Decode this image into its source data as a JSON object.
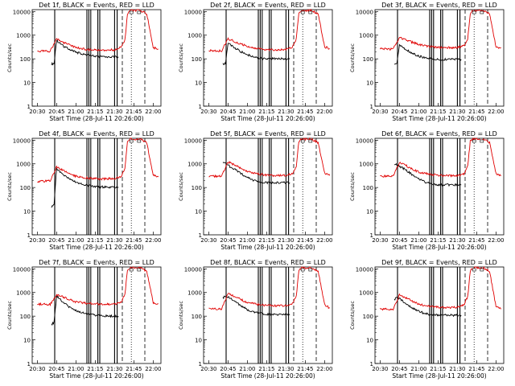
{
  "chart_data": [
    {
      "type": "line",
      "title": "Det 1f, BLACK = Events, RED = LLD",
      "xlabel": "Start Time (28-Jul-11 20:26:00)",
      "ylabel": "Counts/sec",
      "x_ticks": [
        "20:30",
        "20:45",
        "21:00",
        "21:15",
        "21:30",
        "21:45",
        "22:00"
      ],
      "y_ticks": [
        "1",
        "10",
        "100",
        "1000",
        "10000"
      ],
      "ylim": [
        1,
        12000
      ],
      "y_scale": "log",
      "grid": false,
      "legend": "none",
      "series": [
        {
          "name": "Events",
          "color": "#000000",
          "x": [
            "20:41",
            "20:43",
            "20:45",
            "20:50",
            "20:55",
            "21:00",
            "21:05",
            "21:10",
            "21:15",
            "21:20",
            "21:25",
            "21:30",
            "21:33"
          ],
          "values": [
            60,
            65,
            600,
            350,
            250,
            190,
            160,
            140,
            130,
            125,
            120,
            120,
            115
          ]
        },
        {
          "name": "LLD",
          "color": "#e00000",
          "x": [
            "20:30",
            "20:40",
            "20:45",
            "20:50",
            "20:55",
            "21:00",
            "21:10",
            "21:20",
            "21:30",
            "21:35",
            "21:38",
            "21:40",
            "21:42",
            "21:50",
            "21:55",
            "22:00",
            "22:04"
          ],
          "values": [
            210,
            210,
            700,
            500,
            380,
            300,
            240,
            230,
            240,
            300,
            600,
            8000,
            11000,
            11000,
            8000,
            300,
            260
          ]
        }
      ]
    },
    {
      "type": "line",
      "title": "Det 2f, BLACK = Events, RED = LLD",
      "xlabel": "Start Time (28-Jul-11 20:26:00)",
      "ylabel": "Counts/sec",
      "x_ticks": [
        "20:30",
        "20:45",
        "21:00",
        "21:15",
        "21:30",
        "21:45",
        "22:00"
      ],
      "y_ticks": [
        "1",
        "10",
        "100",
        "1000",
        "10000"
      ],
      "ylim": [
        1,
        12000
      ],
      "y_scale": "log",
      "grid": false,
      "legend": "none",
      "series": [
        {
          "name": "Events",
          "color": "#000000",
          "x": [
            "20:41",
            "20:43",
            "20:45",
            "20:50",
            "20:55",
            "21:00",
            "21:05",
            "21:10",
            "21:15",
            "21:20",
            "21:25",
            "21:30",
            "21:33"
          ],
          "values": [
            60,
            65,
            450,
            300,
            200,
            150,
            120,
            105,
            100,
            100,
            100,
            100,
            100
          ]
        },
        {
          "name": "LLD",
          "color": "#e00000",
          "x": [
            "20:30",
            "20:40",
            "20:45",
            "20:50",
            "20:55",
            "21:00",
            "21:10",
            "21:20",
            "21:30",
            "21:35",
            "21:38",
            "21:40",
            "21:42",
            "21:50",
            "21:55",
            "22:00",
            "22:04"
          ],
          "values": [
            220,
            220,
            700,
            550,
            420,
            330,
            260,
            240,
            250,
            320,
            700,
            8000,
            11000,
            11000,
            8000,
            320,
            270
          ]
        }
      ]
    },
    {
      "type": "line",
      "title": "Det 3f, BLACK = Events, RED = LLD",
      "xlabel": "Start Time (28-Jul-11 20:26:00)",
      "ylabel": "Counts/sec",
      "x_ticks": [
        "20:30",
        "20:45",
        "21:00",
        "21:15",
        "21:30",
        "21:45",
        "22:00"
      ],
      "y_ticks": [
        "1",
        "10",
        "100",
        "1000",
        "10000"
      ],
      "ylim": [
        1,
        12000
      ],
      "y_scale": "log",
      "grid": false,
      "legend": "none",
      "series": [
        {
          "name": "Events",
          "color": "#000000",
          "x": [
            "20:41",
            "20:43",
            "20:45",
            "20:50",
            "20:55",
            "21:00",
            "21:05",
            "21:10",
            "21:15",
            "21:20",
            "21:25",
            "21:30",
            "21:33"
          ],
          "values": [
            55,
            60,
            400,
            250,
            170,
            130,
            110,
            100,
            95,
            95,
            95,
            95,
            95
          ]
        },
        {
          "name": "LLD",
          "color": "#e00000",
          "x": [
            "20:30",
            "20:40",
            "20:45",
            "20:50",
            "20:55",
            "21:00",
            "21:10",
            "21:20",
            "21:30",
            "21:35",
            "21:38",
            "21:40",
            "21:42",
            "21:50",
            "21:55",
            "22:00",
            "22:04"
          ],
          "values": [
            260,
            260,
            800,
            650,
            500,
            400,
            320,
            290,
            300,
            350,
            700,
            8000,
            11000,
            11000,
            8000,
            320,
            290
          ]
        }
      ]
    },
    {
      "type": "line",
      "title": "Det 4f, BLACK = Events, RED = LLD",
      "xlabel": "Start Time (28-Jul-11 20:26:00)",
      "ylabel": "Counts/sec",
      "x_ticks": [
        "20:30",
        "20:45",
        "21:00",
        "21:15",
        "21:30",
        "21:45",
        "22:00"
      ],
      "y_ticks": [
        "1",
        "10",
        "100",
        "1000",
        "10000"
      ],
      "ylim": [
        1,
        12000
      ],
      "y_scale": "log",
      "grid": false,
      "legend": "none",
      "series": [
        {
          "name": "Events",
          "color": "#000000",
          "x": [
            "20:41",
            "20:43",
            "20:45",
            "20:50",
            "20:55",
            "21:00",
            "21:05",
            "21:10",
            "21:15",
            "21:20",
            "21:25",
            "21:30",
            "21:33"
          ],
          "values": [
            15,
            20,
            650,
            350,
            230,
            170,
            140,
            120,
            110,
            105,
            105,
            100,
            100
          ]
        },
        {
          "name": "LLD",
          "color": "#e00000",
          "x": [
            "20:30",
            "20:40",
            "20:45",
            "20:50",
            "20:55",
            "21:00",
            "21:10",
            "21:20",
            "21:30",
            "21:35",
            "21:38",
            "21:40",
            "21:42",
            "21:50",
            "21:55",
            "22:00",
            "22:04"
          ],
          "values": [
            180,
            190,
            750,
            520,
            380,
            300,
            250,
            230,
            240,
            300,
            600,
            8000,
            11000,
            11000,
            8000,
            320,
            280
          ]
        }
      ]
    },
    {
      "type": "line",
      "title": "Det 5f, BLACK = Events, RED = LLD",
      "xlabel": "Start Time (28-Jul-11 20:26:00)",
      "ylabel": "Counts/sec",
      "x_ticks": [
        "20:30",
        "20:45",
        "21:00",
        "21:15",
        "21:30",
        "21:45",
        "22:00"
      ],
      "y_ticks": [
        "1",
        "10",
        "100",
        "1000",
        "10000"
      ],
      "ylim": [
        1,
        12000
      ],
      "y_scale": "log",
      "grid": false,
      "legend": "none",
      "series": [
        {
          "name": "Events",
          "color": "#000000",
          "x": [
            "20:41",
            "20:43",
            "20:45",
            "20:50",
            "20:55",
            "21:00",
            "21:05",
            "21:10",
            "21:15",
            "21:20",
            "21:25",
            "21:30",
            "21:33"
          ],
          "values": [
            1100,
            1000,
            850,
            600,
            400,
            260,
            200,
            170,
            160,
            160,
            160,
            160,
            160
          ]
        },
        {
          "name": "LLD",
          "color": "#e00000",
          "x": [
            "20:30",
            "20:40",
            "20:45",
            "20:50",
            "20:55",
            "21:00",
            "21:10",
            "21:20",
            "21:30",
            "21:35",
            "21:38",
            "21:40",
            "21:42",
            "21:50",
            "21:55",
            "22:00",
            "22:04"
          ],
          "values": [
            300,
            300,
            1200,
            900,
            650,
            480,
            360,
            320,
            330,
            380,
            800,
            9000,
            11000,
            11000,
            8000,
            400,
            320
          ]
        }
      ]
    },
    {
      "type": "line",
      "title": "Det 6f, BLACK = Events, RED = LLD",
      "xlabel": "Start Time (28-Jul-11 20:26:00)",
      "ylabel": "Counts/sec",
      "x_ticks": [
        "20:30",
        "20:45",
        "21:00",
        "21:15",
        "21:30",
        "21:45",
        "22:00"
      ],
      "y_ticks": [
        "1",
        "10",
        "100",
        "1000",
        "10000"
      ],
      "ylim": [
        1,
        12000
      ],
      "y_scale": "log",
      "grid": false,
      "legend": "none",
      "series": [
        {
          "name": "Events",
          "color": "#000000",
          "x": [
            "20:41",
            "20:43",
            "20:45",
            "20:50",
            "20:55",
            "21:00",
            "21:05",
            "21:10",
            "21:15",
            "21:20",
            "21:25",
            "21:30",
            "21:33"
          ],
          "values": [
            1000,
            900,
            800,
            550,
            350,
            230,
            170,
            140,
            130,
            130,
            130,
            130,
            130
          ]
        },
        {
          "name": "LLD",
          "color": "#e00000",
          "x": [
            "20:30",
            "20:40",
            "20:45",
            "20:50",
            "20:55",
            "21:00",
            "21:10",
            "21:20",
            "21:30",
            "21:35",
            "21:38",
            "21:40",
            "21:42",
            "21:50",
            "21:55",
            "22:00",
            "22:04"
          ],
          "values": [
            300,
            300,
            1100,
            850,
            600,
            450,
            350,
            310,
            320,
            370,
            800,
            9000,
            11000,
            11000,
            8000,
            380,
            320
          ]
        }
      ]
    },
    {
      "type": "line",
      "title": "Det 7f, BLACK = Events, RED = LLD",
      "xlabel": "Start Time (28-Jul-11 20:26:00)",
      "ylabel": "Counts/sec",
      "x_ticks": [
        "20:30",
        "20:45",
        "21:00",
        "21:15",
        "21:30",
        "21:45",
        "22:00"
      ],
      "y_ticks": [
        "1",
        "10",
        "100",
        "1000",
        "10000"
      ],
      "ylim": [
        1,
        12000
      ],
      "y_scale": "log",
      "grid": false,
      "legend": "none",
      "series": [
        {
          "name": "Events",
          "color": "#000000",
          "x": [
            "20:41",
            "20:43",
            "20:45",
            "20:50",
            "20:55",
            "21:00",
            "21:05",
            "21:10",
            "21:15",
            "21:20",
            "21:25",
            "21:30",
            "21:33"
          ],
          "values": [
            45,
            55,
            700,
            380,
            240,
            170,
            140,
            120,
            110,
            105,
            100,
            100,
            100
          ]
        },
        {
          "name": "LLD",
          "color": "#e00000",
          "x": [
            "20:30",
            "20:40",
            "20:45",
            "20:50",
            "20:55",
            "21:00",
            "21:10",
            "21:20",
            "21:30",
            "21:35",
            "21:38",
            "21:40",
            "21:42",
            "21:50",
            "21:55",
            "22:00",
            "22:04"
          ],
          "values": [
            320,
            320,
            800,
            650,
            500,
            400,
            340,
            320,
            330,
            380,
            800,
            9000,
            11000,
            11000,
            8000,
            380,
            330
          ]
        }
      ]
    },
    {
      "type": "line",
      "title": "Det 8f, BLACK = Events, RED = LLD",
      "xlabel": "Start Time (28-Jul-11 20:26:00)",
      "ylabel": "Counts/sec",
      "x_ticks": [
        "20:30",
        "20:45",
        "21:00",
        "21:15",
        "21:30",
        "21:45",
        "22:00"
      ],
      "y_ticks": [
        "1",
        "10",
        "100",
        "1000",
        "10000"
      ],
      "ylim": [
        1,
        12000
      ],
      "y_scale": "log",
      "grid": false,
      "legend": "none",
      "series": [
        {
          "name": "Events",
          "color": "#000000",
          "x": [
            "20:41",
            "20:43",
            "20:45",
            "20:50",
            "20:55",
            "21:00",
            "21:05",
            "21:10",
            "21:15",
            "21:20",
            "21:25",
            "21:30",
            "21:33"
          ],
          "values": [
            600,
            700,
            650,
            420,
            280,
            190,
            150,
            130,
            120,
            115,
            115,
            115,
            115
          ]
        },
        {
          "name": "LLD",
          "color": "#e00000",
          "x": [
            "20:30",
            "20:40",
            "20:45",
            "20:50",
            "20:55",
            "21:00",
            "21:10",
            "21:20",
            "21:30",
            "21:35",
            "21:38",
            "21:40",
            "21:42",
            "21:50",
            "21:55",
            "22:00",
            "22:04"
          ],
          "values": [
            200,
            200,
            900,
            700,
            500,
            380,
            300,
            270,
            280,
            330,
            700,
            8000,
            11000,
            11000,
            8000,
            300,
            220
          ]
        }
      ]
    },
    {
      "type": "line",
      "title": "Det 9f, BLACK = Events, RED = LLD",
      "xlabel": "Start Time (28-Jul-11 20:26:00)",
      "ylabel": "Counts/sec",
      "x_ticks": [
        "20:30",
        "20:45",
        "21:00",
        "21:15",
        "21:30",
        "21:45",
        "22:00"
      ],
      "y_ticks": [
        "1",
        "10",
        "100",
        "1000",
        "10000"
      ],
      "ylim": [
        1,
        12000
      ],
      "y_scale": "log",
      "grid": false,
      "legend": "none",
      "series": [
        {
          "name": "Events",
          "color": "#000000",
          "x": [
            "20:41",
            "20:43",
            "20:45",
            "20:50",
            "20:55",
            "21:00",
            "21:05",
            "21:10",
            "21:15",
            "21:20",
            "21:25",
            "21:30",
            "21:33"
          ],
          "values": [
            500,
            600,
            550,
            350,
            220,
            160,
            130,
            115,
            110,
            110,
            110,
            110,
            110
          ]
        },
        {
          "name": "LLD",
          "color": "#e00000",
          "x": [
            "20:30",
            "20:40",
            "20:45",
            "20:50",
            "20:55",
            "21:00",
            "21:10",
            "21:20",
            "21:30",
            "21:35",
            "21:38",
            "21:40",
            "21:42",
            "21:50",
            "21:55",
            "22:00",
            "22:04"
          ],
          "values": [
            200,
            200,
            800,
            600,
            420,
            320,
            260,
            230,
            240,
            300,
            650,
            8000,
            11000,
            11000,
            8000,
            250,
            200
          ]
        }
      ]
    }
  ]
}
